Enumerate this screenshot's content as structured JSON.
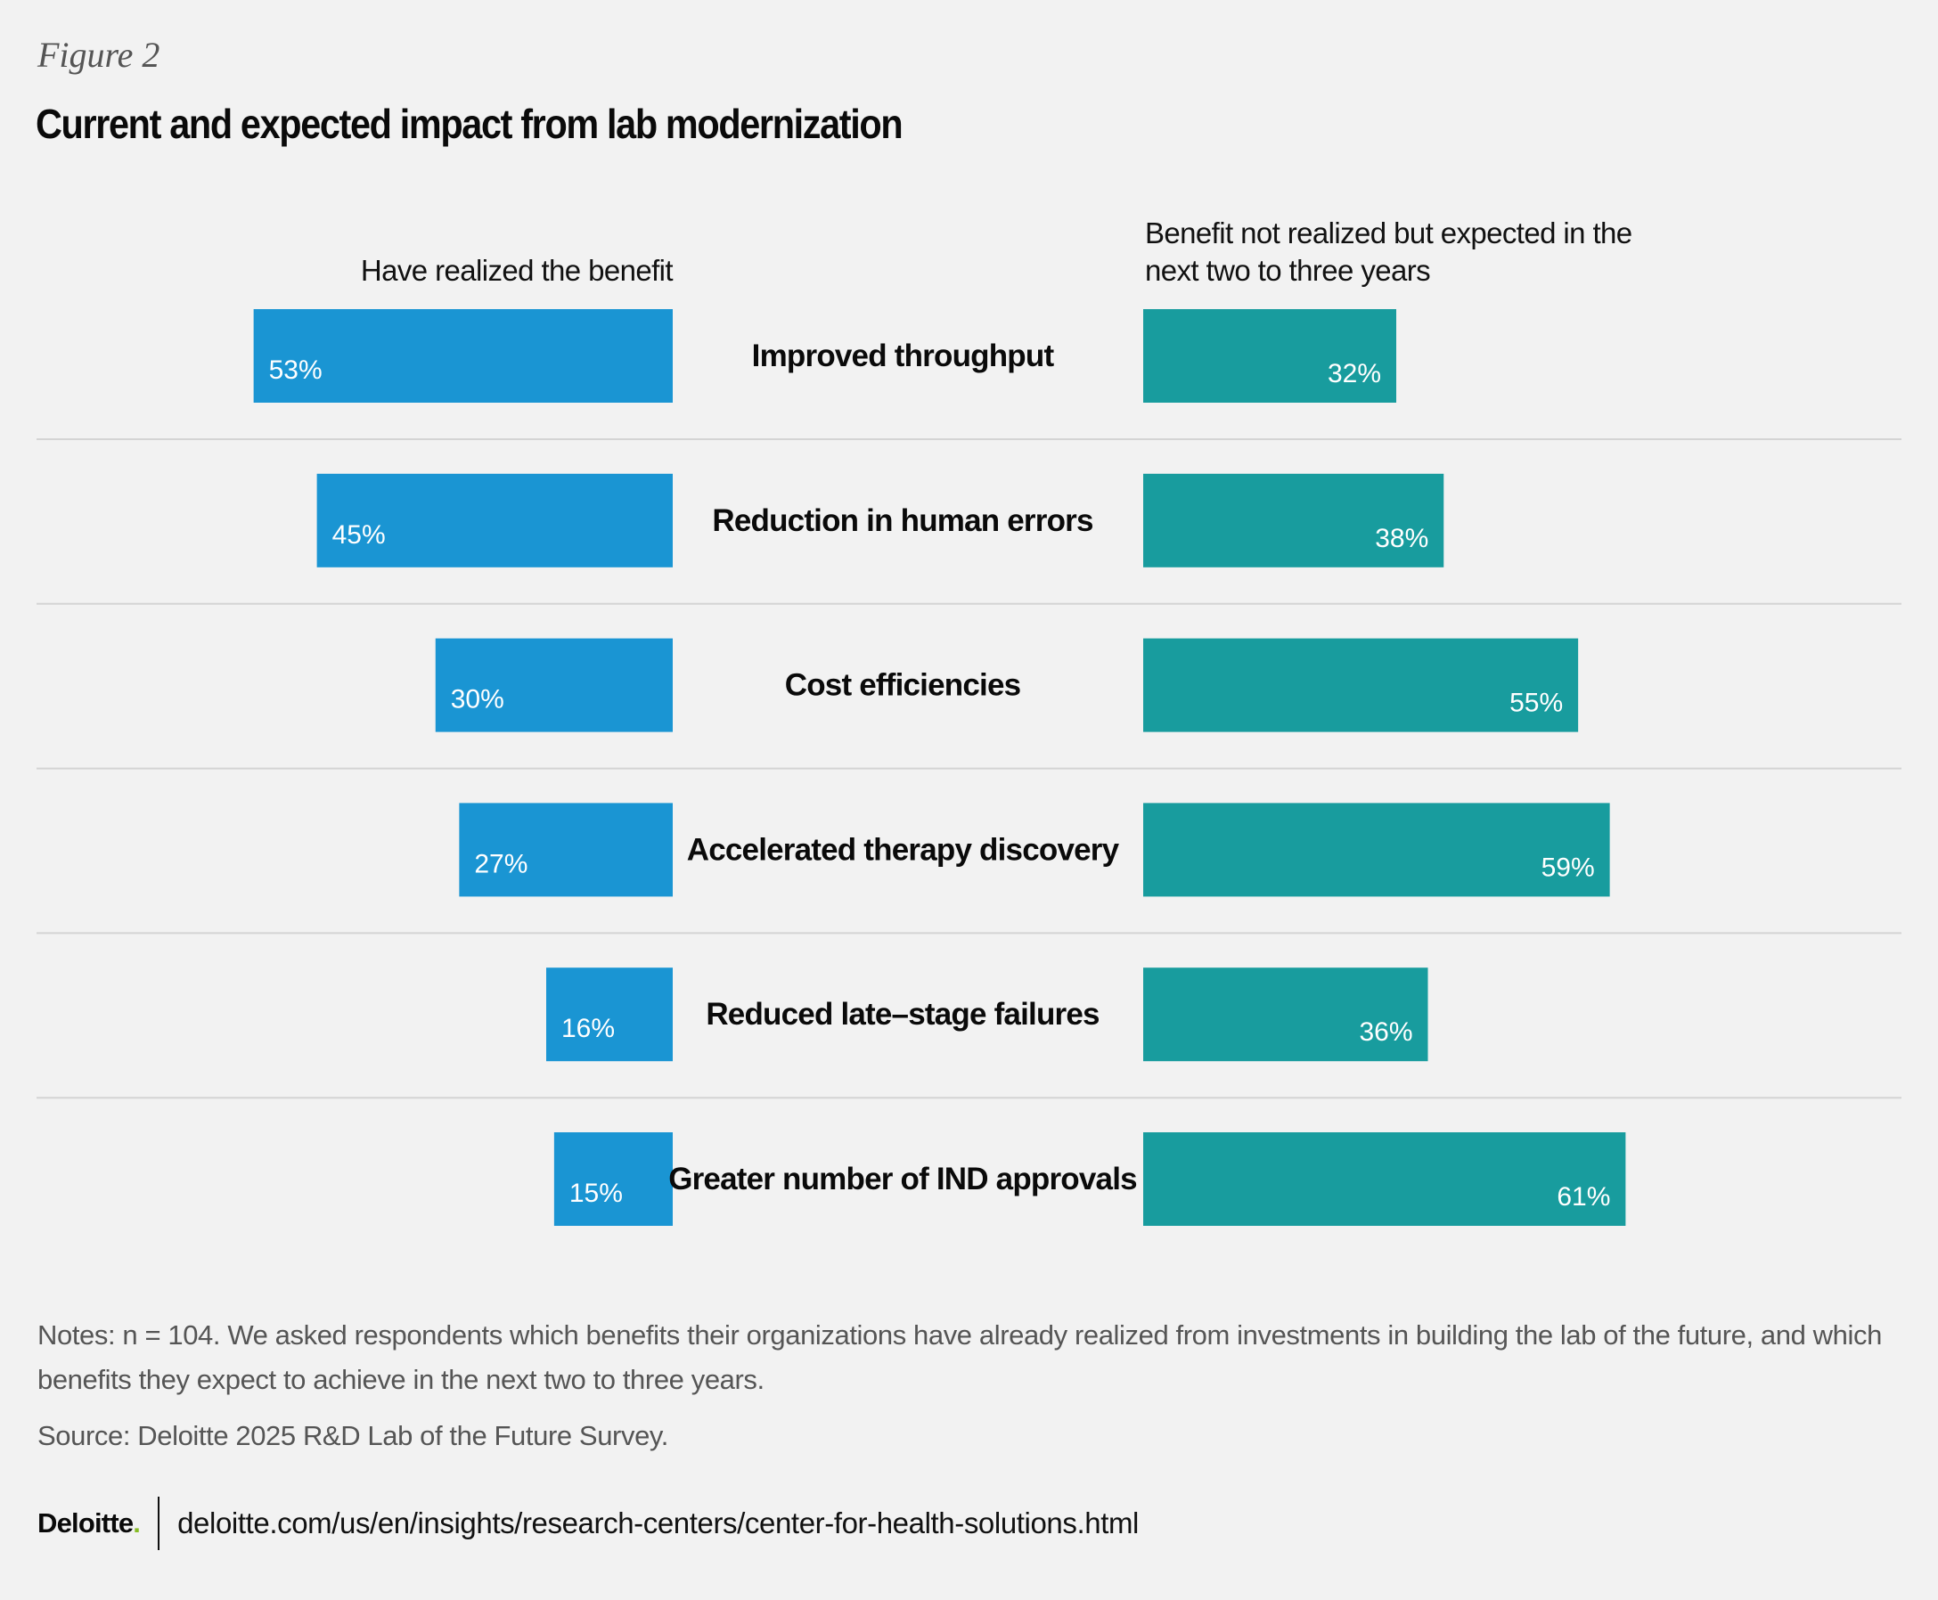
{
  "figure_label": "Figure 2",
  "chart_data": {
    "type": "bar",
    "orientation": "horizontal-diverging",
    "title": "Current and expected impact from lab modernization",
    "categories": [
      "Improved throughput",
      "Reduction in human errors",
      "Cost efficiencies",
      "Accelerated therapy discovery",
      "Reduced late–stage failures",
      "Greater number of IND approvals"
    ],
    "series": [
      {
        "name": "Have realized the benefit",
        "values": [
          53,
          45,
          30,
          27,
          16,
          15
        ],
        "labels": [
          "53%",
          "45%",
          "30%",
          "27%",
          "16%",
          "15%"
        ],
        "color": "#1a95d3",
        "direction": "left"
      },
      {
        "name": "Benefit not realized but expected in the next two to three years",
        "values": [
          32,
          38,
          55,
          59,
          36,
          61
        ],
        "labels": [
          "32%",
          "38%",
          "55%",
          "59%",
          "36%",
          "61%"
        ],
        "color": "#189c9e",
        "direction": "right"
      }
    ],
    "unit": "%",
    "xlim": [
      0,
      100
    ],
    "grid": false,
    "row_dividers": true,
    "legend": "column-headers-top"
  },
  "headers": {
    "left": "Have realized the benefit",
    "right_line1": "Benefit not realized but expected in the",
    "right_line2": "next two to three years"
  },
  "notes": "Notes: n = 104. We asked respondents which benefits their organizations have already realized from investments in building the lab of the future, and which benefits they expect to achieve in the next two to three years.",
  "source": "Source: Deloitte 2025 R&D Lab of the Future Survey.",
  "footer": {
    "logo": "Deloitte",
    "logo_dot": ".",
    "url": "deloitte.com/us/en/insights/research-centers/center-for-health-solutions.html"
  },
  "colors": {
    "background": "#f2f2f2",
    "divider": "#d4d4d4",
    "brand_green": "#86bc25"
  }
}
